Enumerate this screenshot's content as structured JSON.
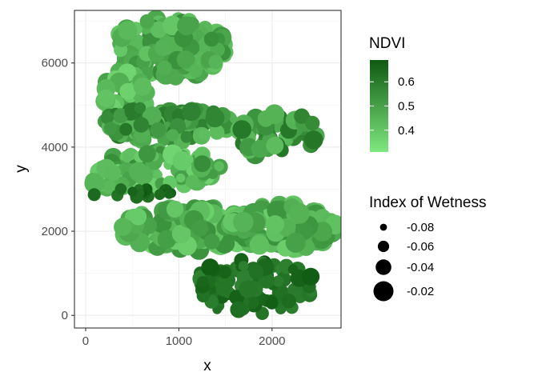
{
  "chart_data": {
    "type": "scatter",
    "xlabel": "x",
    "ylabel": "y",
    "xlim": [
      -120,
      2740
    ],
    "ylim": [
      -300,
      7250
    ],
    "x_ticks": [
      0,
      1000,
      2000
    ],
    "y_ticks": [
      0,
      2000,
      4000,
      6000
    ],
    "x_tick_labels": [
      "0",
      "1000",
      "2000"
    ],
    "y_tick_labels": [
      "0",
      "2000",
      "4000",
      "6000"
    ],
    "grid": true,
    "legend_position": "right",
    "color_legend": {
      "title": "NDVI",
      "range": [
        0.31,
        0.69
      ],
      "breaks": [
        0.6,
        0.5,
        0.4
      ],
      "break_labels": [
        "0.6",
        "0.5",
        "0.4"
      ],
      "low_color": "#7fe87f",
      "high_color": "#0f5a12"
    },
    "size_legend": {
      "title": "Index of Wetness",
      "breaks": [
        -0.08,
        -0.06,
        -0.04,
        -0.02
      ],
      "break_labels": [
        "-0.08",
        "-0.06",
        "-0.04",
        "-0.02"
      ]
    },
    "regions": [
      {
        "cx": 900,
        "cy": 6350,
        "rx": 620,
        "ry": 700,
        "n": 150,
        "ndvi": [
          0.4,
          0.56
        ],
        "wet": [
          -0.05,
          -0.015
        ]
      },
      {
        "cx": 420,
        "cy": 5300,
        "rx": 250,
        "ry": 600,
        "n": 40,
        "ndvi": [
          0.36,
          0.52
        ],
        "wet": [
          -0.05,
          -0.02
        ]
      },
      {
        "cx": 880,
        "cy": 4550,
        "rx": 700,
        "ry": 430,
        "n": 120,
        "ndvi": [
          0.42,
          0.62
        ],
        "wet": [
          -0.06,
          -0.02
        ]
      },
      {
        "cx": 2050,
        "cy": 4300,
        "rx": 450,
        "ry": 550,
        "n": 50,
        "ndvi": [
          0.42,
          0.62
        ],
        "wet": [
          -0.05,
          -0.02
        ]
      },
      {
        "cx": 800,
        "cy": 3500,
        "rx": 650,
        "ry": 450,
        "n": 80,
        "ndvi": [
          0.36,
          0.56
        ],
        "wet": [
          -0.07,
          -0.02
        ]
      },
      {
        "cx": 350,
        "cy": 3250,
        "rx": 280,
        "ry": 300,
        "n": 25,
        "ndvi": [
          0.34,
          0.5
        ],
        "wet": [
          -0.05,
          -0.02
        ]
      },
      {
        "cx": 500,
        "cy": 2900,
        "rx": 450,
        "ry": 120,
        "n": 18,
        "ndvi": [
          0.62,
          0.69
        ],
        "wet": [
          -0.08,
          -0.05
        ]
      },
      {
        "cx": 1100,
        "cy": 2050,
        "rx": 750,
        "ry": 520,
        "n": 130,
        "ndvi": [
          0.36,
          0.54
        ],
        "wet": [
          -0.04,
          -0.015
        ]
      },
      {
        "cx": 2100,
        "cy": 2100,
        "rx": 600,
        "ry": 550,
        "n": 120,
        "ndvi": [
          0.38,
          0.55
        ],
        "wet": [
          -0.04,
          -0.015
        ]
      },
      {
        "cx": 1800,
        "cy": 700,
        "rx": 650,
        "ry": 700,
        "n": 100,
        "ndvi": [
          0.58,
          0.69
        ],
        "wet": [
          -0.07,
          -0.03
        ]
      }
    ]
  }
}
